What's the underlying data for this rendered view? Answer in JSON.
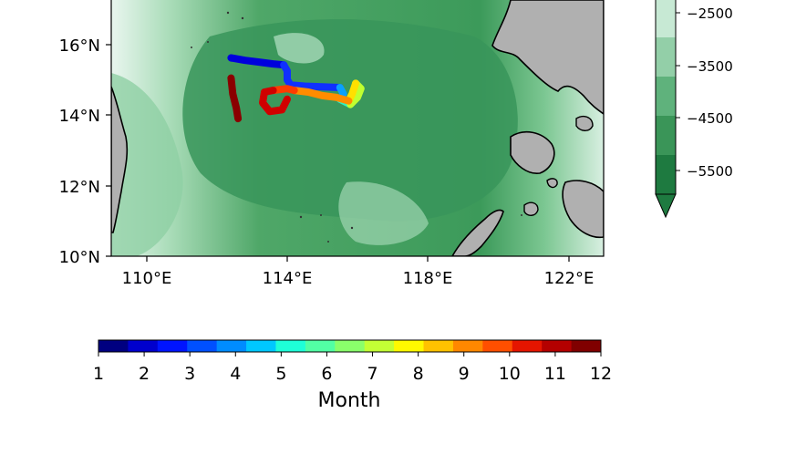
{
  "map": {
    "lat_ticks": [
      "16°N",
      "14°N",
      "12°N",
      "10°N"
    ],
    "lon_ticks": [
      "110°E",
      "114°E",
      "118°E",
      "122°E"
    ],
    "colors": {
      "ocean_deep": "#2f8a4e",
      "ocean_mid": "#58b16e",
      "ocean_shallow": "#a9dcb8",
      "ocean_coast": "#e8f5ee",
      "land": "#b0b0b0",
      "coastline": "#000000"
    }
  },
  "depth_colorbar": {
    "labels": [
      "−2500",
      "−3500",
      "−4500",
      "−5500"
    ],
    "levels": [
      -2500,
      -3500,
      -4500,
      -5500
    ],
    "colors": [
      "#c7e9d4",
      "#93cfa8",
      "#5fb27c",
      "#3a9558",
      "#1e7a40"
    ]
  },
  "month_colorbar": {
    "title": "Month",
    "labels": [
      "1",
      "2",
      "3",
      "4",
      "5",
      "6",
      "7",
      "8",
      "9",
      "10",
      "11",
      "12"
    ],
    "colors": [
      "#000080",
      "#0000cd",
      "#0014ff",
      "#0050ff",
      "#008cff",
      "#00c8ff",
      "#1effd8",
      "#52ffa4",
      "#8aff6b",
      "#c3ff35",
      "#fff900",
      "#ffc200",
      "#ff8800",
      "#ff4f00",
      "#e51500",
      "#b40000",
      "#800000"
    ]
  },
  "track": {
    "segments": [
      {
        "month": 1.5,
        "color": "#0000dd",
        "points": [
          [
            112.4,
            15.62
          ],
          [
            112.8,
            15.55
          ],
          [
            113.2,
            15.5
          ],
          [
            113.6,
            15.45
          ],
          [
            113.9,
            15.42
          ]
        ]
      },
      {
        "month": 2.5,
        "color": "#1030ff",
        "points": [
          [
            113.9,
            15.42
          ],
          [
            114.0,
            15.25
          ],
          [
            114.0,
            15.0
          ],
          [
            114.1,
            14.85
          ],
          [
            114.5,
            14.82
          ],
          [
            115.0,
            14.8
          ],
          [
            115.5,
            14.78
          ]
        ]
      },
      {
        "month": 4.5,
        "color": "#0aa0ff",
        "points": [
          [
            115.5,
            14.78
          ],
          [
            115.6,
            14.6
          ],
          [
            115.5,
            14.45
          ]
        ]
      },
      {
        "month": 6,
        "color": "#30f0c0",
        "points": [
          [
            115.5,
            14.45
          ],
          [
            115.7,
            14.35
          ],
          [
            115.8,
            14.3
          ]
        ]
      },
      {
        "month": 7.5,
        "color": "#c0ff30",
        "points": [
          [
            115.8,
            14.3
          ],
          [
            116.0,
            14.5
          ],
          [
            116.1,
            14.75
          ],
          [
            115.95,
            14.9
          ]
        ]
      },
      {
        "month": 8.5,
        "color": "#ffe000",
        "points": [
          [
            115.95,
            14.9
          ],
          [
            115.85,
            14.6
          ],
          [
            115.75,
            14.4
          ]
        ]
      },
      {
        "month": 9,
        "color": "#ff8c00",
        "points": [
          [
            115.75,
            14.4
          ],
          [
            115.4,
            14.5
          ],
          [
            115.0,
            14.55
          ],
          [
            114.6,
            14.65
          ],
          [
            114.2,
            14.7
          ]
        ]
      },
      {
        "month": 10,
        "color": "#ff3c00",
        "points": [
          [
            114.2,
            14.7
          ],
          [
            114.0,
            14.75
          ],
          [
            113.6,
            14.7
          ]
        ]
      },
      {
        "month": 11,
        "color": "#d00000",
        "points": [
          [
            113.6,
            14.7
          ],
          [
            113.35,
            14.65
          ],
          [
            113.3,
            14.35
          ],
          [
            113.5,
            14.1
          ],
          [
            113.85,
            14.15
          ],
          [
            114.0,
            14.45
          ]
        ]
      },
      {
        "month": 12,
        "color": "#8a0000",
        "points": [
          [
            112.4,
            15.05
          ],
          [
            112.45,
            14.6
          ],
          [
            112.55,
            14.2
          ],
          [
            112.6,
            13.9
          ]
        ]
      }
    ]
  }
}
